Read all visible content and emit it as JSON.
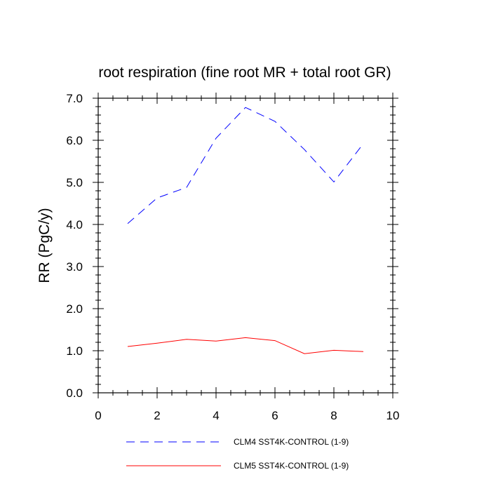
{
  "chart_data": {
    "type": "line",
    "title": "root respiration (fine root MR + total root GR)",
    "xlabel": "",
    "ylabel": "RR  (PgC/y)",
    "xlim": [
      0,
      10
    ],
    "ylim": [
      0,
      7
    ],
    "x_ticks": [
      0,
      2,
      4,
      6,
      8,
      10
    ],
    "x_tick_labels": [
      "0",
      "2",
      "4",
      "6",
      "8",
      "10"
    ],
    "y_ticks": [
      0,
      1,
      2,
      3,
      4,
      5,
      6,
      7
    ],
    "y_tick_labels": [
      "0.0",
      "1.0",
      "2.0",
      "3.0",
      "4.0",
      "5.0",
      "6.0",
      "7.0"
    ],
    "grid": false,
    "legend_position": "bottom",
    "series": [
      {
        "name": "CLM4 SST4K-CONTROL (1-9)",
        "color": "#0000ff",
        "style": "dashed",
        "x": [
          1,
          2,
          3,
          4,
          5,
          6,
          7,
          8,
          9
        ],
        "y": [
          4.02,
          4.63,
          4.88,
          6.05,
          6.78,
          6.45,
          5.78,
          5.01,
          5.92
        ]
      },
      {
        "name": "CLM5 SST4K-CONTROL (1-9)",
        "color": "#ff0000",
        "style": "solid",
        "x": [
          1,
          2,
          3,
          4,
          5,
          6,
          7,
          8,
          9
        ],
        "y": [
          1.1,
          1.18,
          1.27,
          1.23,
          1.31,
          1.24,
          0.93,
          1.01,
          0.98
        ]
      }
    ]
  }
}
